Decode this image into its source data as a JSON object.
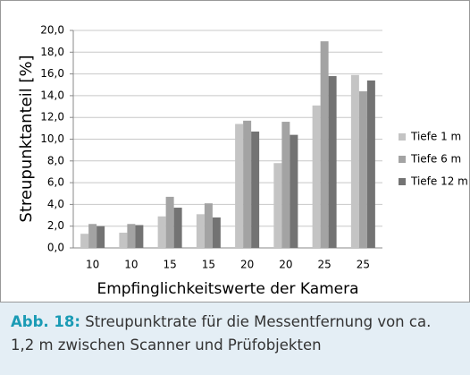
{
  "chart_data": {
    "type": "bar",
    "y_label": "Streupunktanteil  [%]",
    "x_label": "Empfinglichkeitswerte der Kamera",
    "categories": [
      "10",
      "10",
      "15",
      "15",
      "20",
      "20",
      "25",
      "25"
    ],
    "series": [
      {
        "name": "Tiefe 1 m",
        "color": "#c4c4c4",
        "values": [
          1.3,
          1.4,
          2.9,
          3.1,
          11.4,
          7.8,
          13.1,
          15.9
        ]
      },
      {
        "name": "Tiefe 6 m",
        "color": "#a3a3a3",
        "values": [
          2.2,
          2.2,
          4.7,
          4.1,
          11.7,
          11.6,
          19.0,
          14.4
        ]
      },
      {
        "name": "Tiefe 12 m",
        "color": "#737373",
        "values": [
          2.0,
          2.1,
          3.7,
          2.8,
          10.7,
          10.4,
          15.8,
          15.4
        ]
      }
    ],
    "ylim": [
      0,
      20
    ],
    "yticks": [
      {
        "value": 0,
        "label": "0,0"
      },
      {
        "value": 2,
        "label": "2,0"
      },
      {
        "value": 4,
        "label": "4,0"
      },
      {
        "value": 6,
        "label": "6,0"
      },
      {
        "value": 8,
        "label": "8,0"
      },
      {
        "value": 10,
        "label": "10,0"
      },
      {
        "value": 12,
        "label": "12,0"
      },
      {
        "value": 14,
        "label": "14,0"
      },
      {
        "value": 16,
        "label": "16,0"
      },
      {
        "value": 18,
        "label": "18,0"
      },
      {
        "value": 20,
        "label": "20,0"
      }
    ],
    "grid": true,
    "legend": "right"
  },
  "caption": {
    "label": "Abb. 18:",
    "text": "Streupunktrate für die Messentfernung von ca. 1,2 m zwischen Scanner und Prüfobjekten"
  }
}
